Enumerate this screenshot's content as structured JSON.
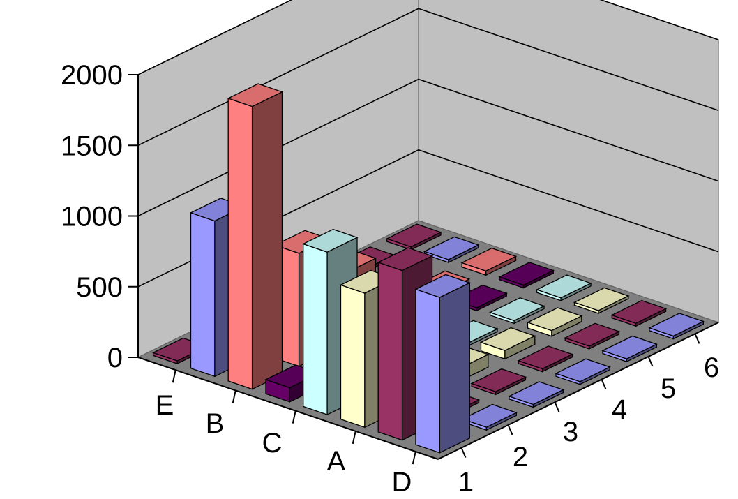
{
  "chart_data": {
    "type": "bar",
    "subtype": "3d-column",
    "title": "",
    "xlabel": "",
    "ylabel": "",
    "grid": true,
    "legend": "none",
    "categories": [
      "E",
      "B",
      "C",
      "A",
      "D"
    ],
    "x": [
      "1",
      "2",
      "3",
      "4",
      "5",
      "6"
    ],
    "zlim": [
      0,
      2000
    ],
    "z_ticks": [
      "2000",
      "1500",
      "1000",
      "500",
      "0"
    ],
    "series": [
      {
        "values": [
          1100,
          20,
          20,
          20,
          20,
          20
        ],
        "color": "#9999ff"
      },
      {
        "values": [
          1200,
          20,
          20,
          20,
          20,
          20
        ],
        "color": "#993366"
      },
      {
        "values": [
          950,
          200,
          90,
          60,
          40,
          20
        ],
        "color": "#ffffcc"
      },
      {
        "values": [
          1150,
          20,
          20,
          20,
          20,
          20
        ],
        "color": "#ccffff"
      },
      {
        "values": [
          100,
          20,
          20,
          20,
          20,
          20
        ],
        "color": "#660066"
      },
      {
        "values": [
          2000,
          800,
          500,
          30,
          30,
          30
        ],
        "color": "#ff8080"
      },
      {
        "values": [
          1100,
          150,
          70,
          20,
          20,
          20
        ],
        "color": "#9999ff"
      },
      {
        "values": [
          20,
          20,
          20,
          20,
          20,
          20
        ],
        "color": "#993366"
      }
    ]
  }
}
